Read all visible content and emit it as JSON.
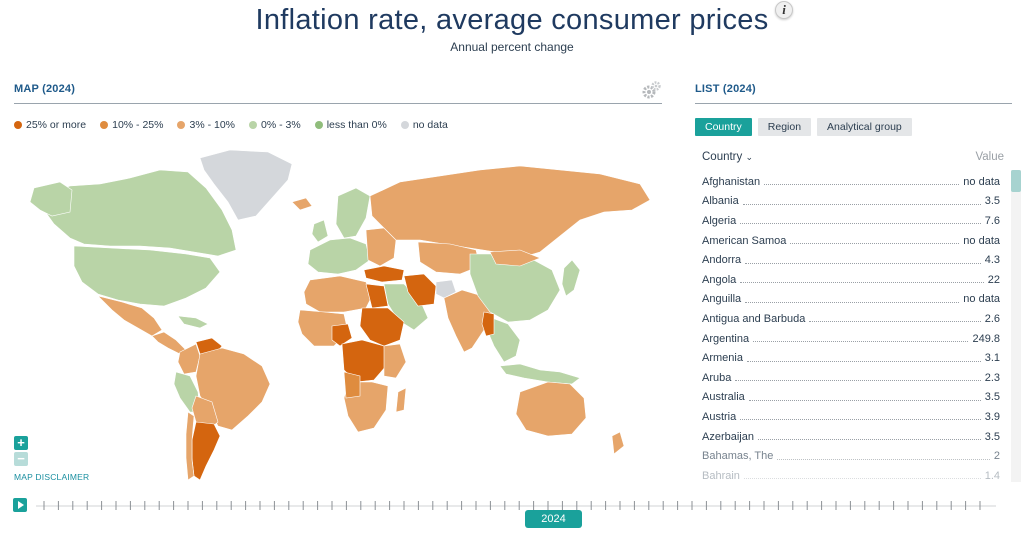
{
  "header": {
    "title": "Inflation rate, average consumer prices",
    "subtitle": "Annual percent change",
    "info_icon": "i"
  },
  "map": {
    "section_title": "MAP (2024)",
    "disclaimer": "MAP DISCLAIMER",
    "legend": [
      {
        "label": "25% or more",
        "color": "#d4650f"
      },
      {
        "label": "10% - 25%",
        "color": "#df8c3f"
      },
      {
        "label": "3% - 10%",
        "color": "#e6a56a"
      },
      {
        "label": "0% - 3%",
        "color": "#b9d4a7"
      },
      {
        "label": "less than 0%",
        "color": "#90bd7c"
      },
      {
        "label": "no data",
        "color": "#d4d7db"
      }
    ],
    "zoom_in": "+",
    "zoom_out": "−"
  },
  "timeline": {
    "year": "2024"
  },
  "list": {
    "section_title": "LIST (2024)",
    "tabs": [
      {
        "label": "Country",
        "active": true
      },
      {
        "label": "Region",
        "active": false
      },
      {
        "label": "Analytical group",
        "active": false
      }
    ],
    "header_country": "Country",
    "header_value": "Value",
    "rows": [
      {
        "name": "Afghanistan",
        "value": "no data"
      },
      {
        "name": "Albania",
        "value": "3.5"
      },
      {
        "name": "Algeria",
        "value": "7.6"
      },
      {
        "name": "American Samoa",
        "value": "no data"
      },
      {
        "name": "Andorra",
        "value": "4.3"
      },
      {
        "name": "Angola",
        "value": "22"
      },
      {
        "name": "Anguilla",
        "value": "no data"
      },
      {
        "name": "Antigua and Barbuda",
        "value": "2.6"
      },
      {
        "name": "Argentina",
        "value": "249.8"
      },
      {
        "name": "Armenia",
        "value": "3.1"
      },
      {
        "name": "Aruba",
        "value": "2.3"
      },
      {
        "name": "Australia",
        "value": "3.5"
      },
      {
        "name": "Austria",
        "value": "3.9"
      },
      {
        "name": "Azerbaijan",
        "value": "3.5"
      },
      {
        "name": "Bahamas, The",
        "value": "2"
      },
      {
        "name": "Bahrain",
        "value": "1.4"
      }
    ]
  },
  "colors": {
    "accent": "#1aa19b",
    "title": "#1f3a60",
    "section": "#1f5a8a"
  }
}
